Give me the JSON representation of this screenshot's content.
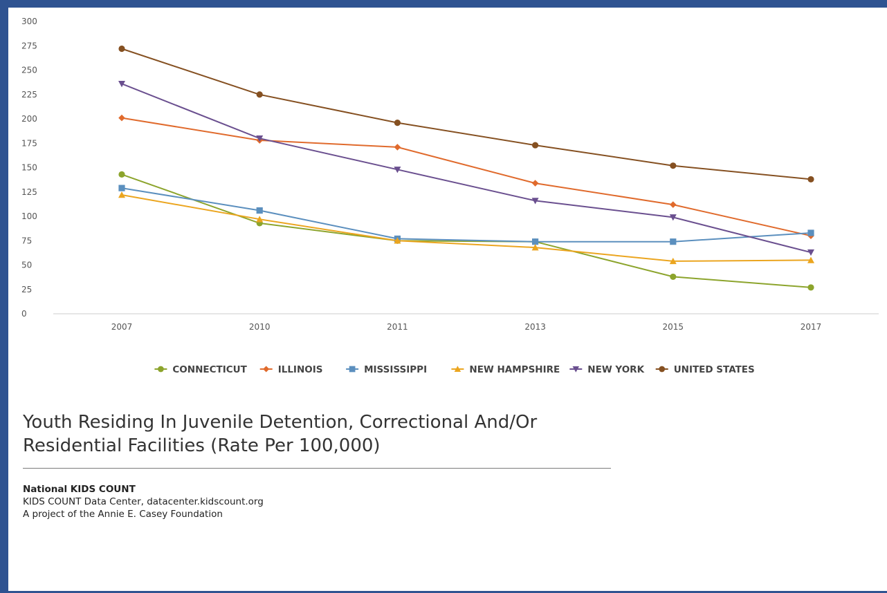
{
  "chart_data": {
    "type": "line",
    "title": "Youth Residing In Juvenile Detention, Correctional And/Or Residential Facilities (Rate Per 100,000)",
    "xlabel": "",
    "ylabel": "",
    "categories": [
      "2007",
      "2010",
      "2011",
      "2013",
      "2015",
      "2017"
    ],
    "ylim": [
      0,
      300
    ],
    "yticks": [
      "0",
      "25",
      "50",
      "75",
      "100",
      "125",
      "150",
      "175",
      "200",
      "225",
      "250",
      "275",
      "300"
    ],
    "grid": false,
    "legend_position": "bottom",
    "series": [
      {
        "name": "CONNECTICUT",
        "color": "#8ca42c",
        "marker": "circle",
        "values": [
          143,
          93,
          75,
          74,
          38,
          27
        ]
      },
      {
        "name": "ILLINOIS",
        "color": "#e06a2c",
        "marker": "diamond",
        "values": [
          201,
          178,
          171,
          134,
          112,
          80
        ]
      },
      {
        "name": "MISSISSIPPI",
        "color": "#5b8fbe",
        "marker": "square",
        "values": [
          129,
          106,
          77,
          74,
          74,
          83
        ]
      },
      {
        "name": "NEW HAMPSHIRE",
        "color": "#eba51f",
        "marker": "triangle-up",
        "values": [
          122,
          97,
          75,
          68,
          54,
          55
        ]
      },
      {
        "name": "NEW YORK",
        "color": "#6a4f8f",
        "marker": "triangle-down",
        "values": [
          236,
          180,
          148,
          116,
          99,
          63
        ]
      },
      {
        "name": "UNITED STATES",
        "color": "#855021",
        "marker": "circle",
        "values": [
          272,
          225,
          196,
          173,
          152,
          138
        ]
      }
    ]
  },
  "source": {
    "name": "National KIDS COUNT",
    "line1": "KIDS COUNT Data Center, datacenter.kidscount.org",
    "line2": "A project of the Annie E. Casey Foundation"
  }
}
